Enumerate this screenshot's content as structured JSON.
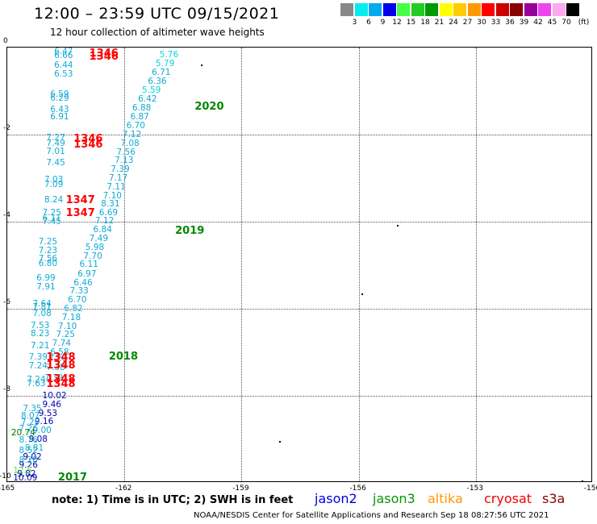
{
  "title": "12:00 – 23:59 UTC 09/15/2021",
  "subtitle": "12 hour collection of altimeter wave heights",
  "legend": {
    "unit": "(ft)",
    "colors": [
      "#888888",
      "#00eeee",
      "#00aaee",
      "#0000ee",
      "#44ff44",
      "#22cc22",
      "#009900",
      "#ffff00",
      "#ffcc00",
      "#ff9900",
      "#ff0000",
      "#cc0000",
      "#880000",
      "#990099",
      "#ee44ee",
      "#ffaaee",
      "#000000"
    ],
    "labels": [
      "3",
      "6",
      "9",
      "12",
      "15",
      "18",
      "21",
      "24",
      "27",
      "30",
      "33",
      "36",
      "39",
      "42",
      "45",
      "70"
    ]
  },
  "map": {
    "lon_min": -165,
    "lon_max": -150,
    "lat_min": -10,
    "lat_max": 0,
    "xticks": [
      "-165",
      "-162",
      "-159",
      "-156",
      "-153",
      "-150"
    ],
    "yticks": [
      "0",
      "-2",
      "-4",
      "-6",
      "-8",
      "-10"
    ]
  },
  "passes": [
    {
      "label": "2020",
      "lon": -160.2,
      "lat": -1.35,
      "color": "#008800"
    },
    {
      "label": "2019",
      "lon": -160.7,
      "lat": -4.2,
      "color": "#008800"
    },
    {
      "label": "2018",
      "lon": -162.4,
      "lat": -7.1,
      "color": "#008800"
    },
    {
      "label": "2017",
      "lon": -163.7,
      "lat": -9.92,
      "color": "#008800"
    },
    {
      "label": "1346",
      "lon": -162.9,
      "lat": -0.08,
      "color": "#ff0000"
    },
    {
      "label": "1346",
      "lon": -162.9,
      "lat": -0.2,
      "color": "#ff0000"
    },
    {
      "label": "1346",
      "lon": -163.3,
      "lat": -2.1,
      "color": "#ff0000"
    },
    {
      "label": "1346",
      "lon": -163.3,
      "lat": -2.22,
      "color": "#ff0000"
    },
    {
      "label": "1347",
      "lon": -163.5,
      "lat": -3.5,
      "color": "#ff0000"
    },
    {
      "label": "1347",
      "lon": -163.5,
      "lat": -3.8,
      "color": "#ff0000"
    },
    {
      "label": "1348",
      "lon": -164.0,
      "lat": -7.12,
      "color": "#ff0000"
    },
    {
      "label": "1348",
      "lon": -164.0,
      "lat": -7.3,
      "color": "#ff0000"
    },
    {
      "label": "1348",
      "lon": -164.0,
      "lat": -7.62,
      "color": "#ff0000"
    },
    {
      "label": "1348",
      "lon": -164.0,
      "lat": -7.72,
      "color": "#ff0000"
    }
  ],
  "points": [
    {
      "v": "5.76",
      "lon": -161.1,
      "lat": -0.17,
      "c": "#00d6d6"
    },
    {
      "v": "5.79",
      "lon": -161.2,
      "lat": -0.37,
      "c": "#00d6d6"
    },
    {
      "v": "6.71",
      "lon": -161.3,
      "lat": -0.58,
      "c": "#11aad6"
    },
    {
      "v": "6.36",
      "lon": -161.4,
      "lat": -0.78,
      "c": "#11aad6"
    },
    {
      "v": "5.59",
      "lon": -161.55,
      "lat": -0.98,
      "c": "#00d6d6"
    },
    {
      "v": "6.42",
      "lon": -161.65,
      "lat": -1.19,
      "c": "#11aad6"
    },
    {
      "v": "6.88",
      "lon": -161.8,
      "lat": -1.39,
      "c": "#11aad6"
    },
    {
      "v": "6.87",
      "lon": -161.85,
      "lat": -1.6,
      "c": "#11aad6"
    },
    {
      "v": "6.70",
      "lon": -161.95,
      "lat": -1.8,
      "c": "#11aad6"
    },
    {
      "v": "7.12",
      "lon": -162.05,
      "lat": -2.0,
      "c": "#11aad6"
    },
    {
      "v": "7.08",
      "lon": -162.1,
      "lat": -2.2,
      "c": "#11aad6"
    },
    {
      "v": "7.56",
      "lon": -162.2,
      "lat": -2.4,
      "c": "#11aad6"
    },
    {
      "v": "7.13",
      "lon": -162.25,
      "lat": -2.6,
      "c": "#11aad6"
    },
    {
      "v": "7.39",
      "lon": -162.35,
      "lat": -2.8,
      "c": "#11aad6"
    },
    {
      "v": "7.17",
      "lon": -162.4,
      "lat": -3.0,
      "c": "#11aad6"
    },
    {
      "v": "7.11",
      "lon": -162.45,
      "lat": -3.2,
      "c": "#11aad6"
    },
    {
      "v": "7.10",
      "lon": -162.55,
      "lat": -3.4,
      "c": "#11aad6"
    },
    {
      "v": "8.31",
      "lon": -162.6,
      "lat": -3.6,
      "c": "#11aad6"
    },
    {
      "v": "6.69",
      "lon": -162.65,
      "lat": -3.8,
      "c": "#11aad6"
    },
    {
      "v": "7.12",
      "lon": -162.75,
      "lat": -3.99,
      "c": "#11aad6"
    },
    {
      "v": "6.84",
      "lon": -162.8,
      "lat": -4.19,
      "c": "#11aad6"
    },
    {
      "v": "7.49",
      "lon": -162.9,
      "lat": -4.39,
      "c": "#11aad6"
    },
    {
      "v": "5.98",
      "lon": -163.0,
      "lat": -4.6,
      "c": "#11aad6"
    },
    {
      "v": "7.70",
      "lon": -163.05,
      "lat": -4.8,
      "c": "#11aad6"
    },
    {
      "v": "6.11",
      "lon": -163.15,
      "lat": -4.99,
      "c": "#11aad6"
    },
    {
      "v": "6.97",
      "lon": -163.2,
      "lat": -5.2,
      "c": "#11aad6"
    },
    {
      "v": "6.46",
      "lon": -163.3,
      "lat": -5.4,
      "c": "#11aad6"
    },
    {
      "v": "7.33",
      "lon": -163.4,
      "lat": -5.6,
      "c": "#11aad6"
    },
    {
      "v": "6.70",
      "lon": -163.45,
      "lat": -5.8,
      "c": "#11aad6"
    },
    {
      "v": "6.82",
      "lon": -163.55,
      "lat": -6.0,
      "c": "#11aad6"
    },
    {
      "v": "7.18",
      "lon": -163.6,
      "lat": -6.2,
      "c": "#11aad6"
    },
    {
      "v": "7.10",
      "lon": -163.7,
      "lat": -6.4,
      "c": "#11aad6"
    },
    {
      "v": "7.25",
      "lon": -163.75,
      "lat": -6.6,
      "c": "#11aad6"
    },
    {
      "v": "7.74",
      "lon": -163.85,
      "lat": -6.8,
      "c": "#11aad6"
    },
    {
      "v": "6.58",
      "lon": -163.9,
      "lat": -7.0,
      "c": "#11aad6"
    },
    {
      "v": "7.20",
      "lon": -163.95,
      "lat": -7.15,
      "c": "#11aad6"
    },
    {
      "v": "7.38",
      "lon": -164.0,
      "lat": -7.35,
      "c": "#11aad6"
    },
    {
      "v": "7.39",
      "lon": -164.05,
      "lat": -7.6,
      "c": "#11aad6"
    },
    {
      "v": "10.02",
      "lon": -164.1,
      "lat": -8.0,
      "c": "#0000aa"
    },
    {
      "v": "9.46",
      "lon": -164.1,
      "lat": -8.2,
      "c": "#0000aa"
    },
    {
      "v": "9.53",
      "lon": -164.2,
      "lat": -8.4,
      "c": "#0000aa"
    },
    {
      "v": "9.16",
      "lon": -164.3,
      "lat": -8.6,
      "c": "#0000aa"
    },
    {
      "v": "9.00",
      "lon": -164.35,
      "lat": -8.8,
      "c": "#11aad6"
    },
    {
      "v": "9.08",
      "lon": -164.45,
      "lat": -9.0,
      "c": "#0000aa"
    },
    {
      "v": "8.81",
      "lon": -164.55,
      "lat": -9.2,
      "c": "#11aad6"
    },
    {
      "v": "9.02",
      "lon": -164.6,
      "lat": -9.4,
      "c": "#0000aa"
    },
    {
      "v": "9.26",
      "lon": -164.7,
      "lat": -9.6,
      "c": "#0000aa"
    },
    {
      "v": "9.82",
      "lon": -164.75,
      "lat": -9.8,
      "c": "#0000aa"
    },
    {
      "v": "10.09",
      "lon": -164.85,
      "lat": -10.0,
      "c": "#0000aa"
    },
    {
      "v": "6.47",
      "lon": -163.8,
      "lat": -0.05,
      "c": "#11aad6"
    },
    {
      "v": "6.66",
      "lon": -163.8,
      "lat": -0.18,
      "c": "#11aad6"
    },
    {
      "v": "6.44",
      "lon": -163.8,
      "lat": -0.4,
      "c": "#11aad6"
    },
    {
      "v": "6.53",
      "lon": -163.8,
      "lat": -0.62,
      "c": "#11aad6"
    },
    {
      "v": "6.59",
      "lon": -163.9,
      "lat": -1.08,
      "c": "#11aad6"
    },
    {
      "v": "6.29",
      "lon": -163.9,
      "lat": -1.16,
      "c": "#11aad6"
    },
    {
      "v": "6.43",
      "lon": -163.9,
      "lat": -1.42,
      "c": "#11aad6"
    },
    {
      "v": "6.91",
      "lon": -163.9,
      "lat": -1.6,
      "c": "#11aad6"
    },
    {
      "v": "7.27",
      "lon": -164.0,
      "lat": -2.08,
      "c": "#11aad6"
    },
    {
      "v": "7.49",
      "lon": -164.0,
      "lat": -2.2,
      "c": "#11aad6"
    },
    {
      "v": "7.01",
      "lon": -164.0,
      "lat": -2.38,
      "c": "#11aad6"
    },
    {
      "v": "7.45",
      "lon": -164.0,
      "lat": -2.65,
      "c": "#11aad6"
    },
    {
      "v": "7.03",
      "lon": -164.05,
      "lat": -3.04,
      "c": "#11aad6"
    },
    {
      "v": "7.09",
      "lon": -164.05,
      "lat": -3.14,
      "c": "#11aad6"
    },
    {
      "v": "8.24",
      "lon": -164.05,
      "lat": -3.5,
      "c": "#11aad6"
    },
    {
      "v": "7.25",
      "lon": -164.1,
      "lat": -3.8,
      "c": "#11aad6"
    },
    {
      "v": "6.11",
      "lon": -164.1,
      "lat": -3.92,
      "c": "#11aad6"
    },
    {
      "v": "7.45",
      "lon": -164.1,
      "lat": -4.0,
      "c": "#11aad6"
    },
    {
      "v": "7.25",
      "lon": -164.2,
      "lat": -4.46,
      "c": "#11aad6"
    },
    {
      "v": "7.23",
      "lon": -164.2,
      "lat": -4.67,
      "c": "#11aad6"
    },
    {
      "v": "7.56",
      "lon": -164.2,
      "lat": -4.85,
      "c": "#11aad6"
    },
    {
      "v": "6.80",
      "lon": -164.2,
      "lat": -4.97,
      "c": "#11aad6"
    },
    {
      "v": "6.99",
      "lon": -164.25,
      "lat": -5.3,
      "c": "#11aad6"
    },
    {
      "v": "7.91",
      "lon": -164.25,
      "lat": -5.5,
      "c": "#11aad6"
    },
    {
      "v": "7.64",
      "lon": -164.35,
      "lat": -5.88,
      "c": "#11aad6"
    },
    {
      "v": "7.81",
      "lon": -164.35,
      "lat": -5.96,
      "c": "#11aad6"
    },
    {
      "v": "7.08",
      "lon": -164.35,
      "lat": -6.12,
      "c": "#11aad6"
    },
    {
      "v": "7.53",
      "lon": -164.4,
      "lat": -6.38,
      "c": "#11aad6"
    },
    {
      "v": "8.23",
      "lon": -164.4,
      "lat": -6.58,
      "c": "#11aad6"
    },
    {
      "v": "7.21",
      "lon": -164.4,
      "lat": -6.85,
      "c": "#11aad6"
    },
    {
      "v": "7.39",
      "lon": -164.45,
      "lat": -7.12,
      "c": "#11aad6"
    },
    {
      "v": "7.24",
      "lon": -164.45,
      "lat": -7.32,
      "c": "#11aad6"
    },
    {
      "v": "7.24",
      "lon": -164.5,
      "lat": -7.63,
      "c": "#11aad6"
    },
    {
      "v": "7.63",
      "lon": -164.5,
      "lat": -7.72,
      "c": "#11aad6"
    },
    {
      "v": "7.35",
      "lon": -164.6,
      "lat": -8.3,
      "c": "#11aad6"
    },
    {
      "v": "8.07",
      "lon": -164.65,
      "lat": -8.47,
      "c": "#11aad6"
    },
    {
      "v": "7.29",
      "lon": -164.65,
      "lat": -8.62,
      "c": "#11aad6"
    },
    {
      "v": "7.26",
      "lon": -164.7,
      "lat": -8.75,
      "c": "#11aad6"
    },
    {
      "v": "20.74",
      "lon": -164.9,
      "lat": -8.86,
      "c": "#007700"
    },
    {
      "v": "8.76",
      "lon": -164.7,
      "lat": -9.02,
      "c": "#11aad6"
    },
    {
      "v": "8.52",
      "lon": -164.7,
      "lat": -9.25,
      "c": "#11aad6"
    },
    {
      "v": "8.28",
      "lon": -164.7,
      "lat": -9.48,
      "c": "#11aad6"
    },
    {
      "v": "12.5",
      "lon": -164.85,
      "lat": -9.72,
      "c": "#44ee44"
    }
  ],
  "note": "note:  1) Time is in UTC;  2) SWH is in feet",
  "satellites": [
    {
      "name": "jason2",
      "color": "#0000dd"
    },
    {
      "name": "jason3",
      "color": "#009900"
    },
    {
      "name": "altika",
      "color": "#ff9900"
    },
    {
      "name": "cryosat",
      "color": "#ee0000"
    },
    {
      "name": "s3a",
      "color": "#880000"
    }
  ],
  "footer": "NOAA/NESDIS Center for Satellite Applications and Research    Sep 18 08:27:56 UTC 2021"
}
